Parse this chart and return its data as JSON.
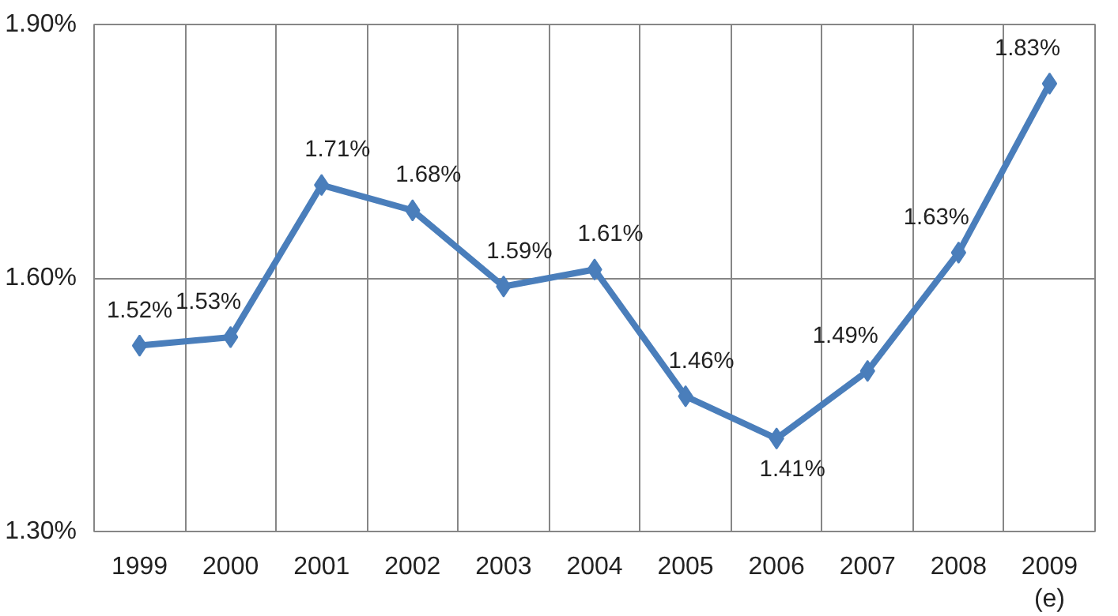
{
  "chart_data": {
    "type": "line",
    "categories": [
      "1999",
      "2000",
      "2001",
      "2002",
      "2003",
      "2004",
      "2005",
      "2006",
      "2007",
      "2008",
      "2009\n(e)"
    ],
    "series": [
      {
        "color": "#4a7ebb",
        "values": [
          1.52,
          1.53,
          1.71,
          1.68,
          1.59,
          1.61,
          1.46,
          1.41,
          1.49,
          1.63,
          1.83
        ]
      }
    ],
    "value_labels": [
      "1.52%",
      "1.53%",
      "1.71%",
      "1.68%",
      "1.59%",
      "1.61%",
      "1.46%",
      "1.41%",
      "1.49%",
      "1.63%",
      "1.83%"
    ],
    "ylim": [
      1.3,
      1.9
    ],
    "yticks": [
      {
        "value": 1.3,
        "label": "1.30%"
      },
      {
        "value": 1.6,
        "label": "1.60%"
      },
      {
        "value": 1.9,
        "label": "1.90%"
      }
    ],
    "grid": true,
    "marker": "diamond",
    "line_style": "solid"
  }
}
